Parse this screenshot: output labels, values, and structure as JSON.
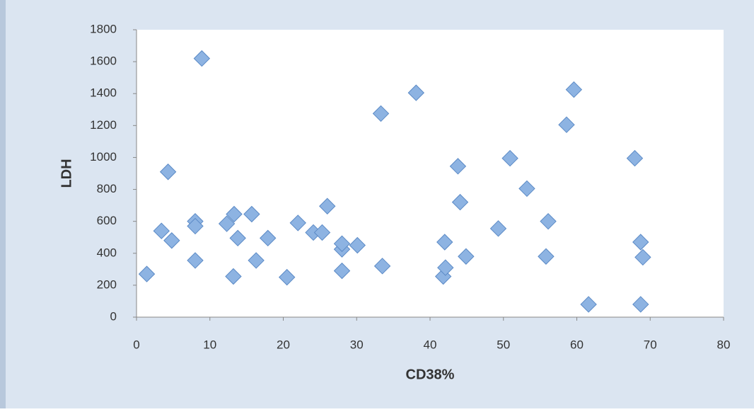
{
  "chart_data": {
    "type": "scatter",
    "x_label": "CD38%",
    "y_label": "LDH",
    "x": [
      1.4,
      3.4,
      4.8,
      4.3,
      8.0,
      8.0,
      8.0,
      8.9,
      12.3,
      13.3,
      13.8,
      13.2,
      15.7,
      16.3,
      17.9,
      20.5,
      22.0,
      24.1,
      25.3,
      26.0,
      28.0,
      28.0,
      28.0,
      30.1,
      33.3,
      33.5,
      38.1,
      41.8,
      42.1,
      42.0,
      43.8,
      44.1,
      44.9,
      49.3,
      50.9,
      53.2,
      56.1,
      55.8,
      58.6,
      59.6,
      61.6,
      67.9,
      68.7,
      69.0,
      68.7
    ],
    "values": [
      270,
      540,
      480,
      910,
      600,
      570,
      355,
      1620,
      585,
      645,
      495,
      255,
      645,
      355,
      495,
      250,
      590,
      530,
      530,
      695,
      425,
      460,
      290,
      450,
      1275,
      320,
      1405,
      255,
      310,
      470,
      945,
      720,
      380,
      555,
      995,
      805,
      600,
      380,
      1205,
      1425,
      80,
      995,
      470,
      375,
      80
    ],
    "color": "#8db3e2",
    "xlim": [
      0,
      80
    ],
    "xticks": [
      0,
      10,
      20,
      30,
      40,
      50,
      60,
      70,
      80
    ],
    "ylim": [
      0,
      1800
    ],
    "yticks": [
      0,
      200,
      400,
      600,
      800,
      1000,
      1200,
      1400,
      1600,
      1800
    ]
  }
}
